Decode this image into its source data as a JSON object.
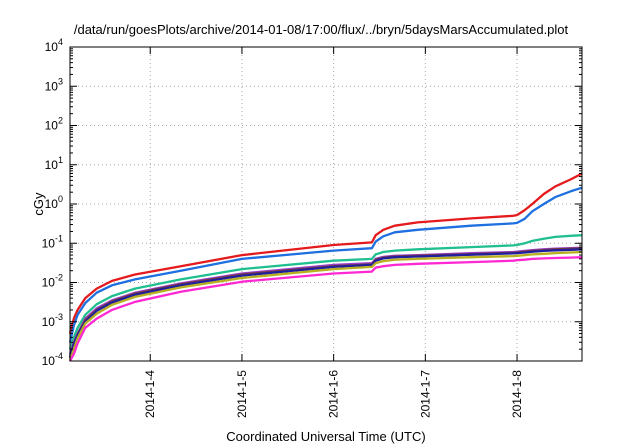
{
  "chart_data": {
    "type": "line",
    "title": "/data/run/goesPlots/archive/2014-01-08/17:00/flux/../bryn/5daysMarsAccumulated.plot",
    "xlabel": "Coordinated Universal Time (UTC)",
    "ylabel": "cGy",
    "y_scale": "log",
    "ylim": [
      0.0001,
      10000
    ],
    "xlim": [
      "2014-01-03 03:00",
      "2014-01-08 17:00"
    ],
    "y_ticks": [
      {
        "base": "10",
        "exp": "-4",
        "value": 0.0001
      },
      {
        "base": "10",
        "exp": "-3",
        "value": 0.001
      },
      {
        "base": "10",
        "exp": "-2",
        "value": 0.01
      },
      {
        "base": "10",
        "exp": "-1",
        "value": 0.1
      },
      {
        "base": "10",
        "exp": "0",
        "value": 1
      },
      {
        "base": "10",
        "exp": "1",
        "value": 10
      },
      {
        "base": "10",
        "exp": "2",
        "value": 100
      },
      {
        "base": "10",
        "exp": "3",
        "value": 1000
      },
      {
        "base": "10",
        "exp": "4",
        "value": 10000
      }
    ],
    "x_ticks": [
      {
        "label": "2014-1-4",
        "value": "2014-01-04 00:00"
      },
      {
        "label": "2014-1-5",
        "value": "2014-01-05 00:00"
      },
      {
        "label": "2014-1-6",
        "value": "2014-01-06 00:00"
      },
      {
        "label": "2014-1-7",
        "value": "2014-01-07 00:00"
      },
      {
        "label": "2014-1-8",
        "value": "2014-01-08 00:00"
      }
    ],
    "grid": true,
    "legend": "none",
    "x": [
      "2014-01-03 03:00",
      "2014-01-03 04:00",
      "2014-01-03 05:00",
      "2014-01-03 07:00",
      "2014-01-03 10:00",
      "2014-01-03 14:00",
      "2014-01-03 20:00",
      "2014-01-04 08:00",
      "2014-01-05 00:00",
      "2014-01-06 00:00",
      "2014-01-06 10:00",
      "2014-01-06 11:00",
      "2014-01-06 13:00",
      "2014-01-06 16:00",
      "2014-01-06 22:00",
      "2014-01-07 12:00",
      "2014-01-07 23:00",
      "2014-01-08 00:00",
      "2014-01-08 02:00",
      "2014-01-08 04:00",
      "2014-01-08 07:00",
      "2014-01-08 10:00",
      "2014-01-08 14:00",
      "2014-01-08 17:00"
    ],
    "series": [
      {
        "color": "#e41a1c",
        "values": [
          0.0005,
          0.0012,
          0.002,
          0.004,
          0.007,
          0.011,
          0.016,
          0.026,
          0.05,
          0.09,
          0.105,
          0.16,
          0.22,
          0.28,
          0.34,
          0.43,
          0.5,
          0.52,
          0.7,
          1.0,
          1.8,
          2.8,
          4.2,
          6.0
        ]
      },
      {
        "color": "#1e6fe0",
        "values": [
          0.0003,
          0.0008,
          0.0015,
          0.003,
          0.0055,
          0.0085,
          0.012,
          0.02,
          0.04,
          0.065,
          0.075,
          0.11,
          0.15,
          0.19,
          0.22,
          0.28,
          0.32,
          0.33,
          0.42,
          0.65,
          1.0,
          1.5,
          2.1,
          2.6
        ]
      },
      {
        "color": "#1fbf8f",
        "values": [
          0.0002,
          0.0004,
          0.0007,
          0.0015,
          0.0028,
          0.0045,
          0.007,
          0.012,
          0.022,
          0.036,
          0.04,
          0.052,
          0.06,
          0.065,
          0.07,
          0.08,
          0.088,
          0.09,
          0.1,
          0.115,
          0.13,
          0.145,
          0.155,
          0.16
        ]
      },
      {
        "color": "#9b3fd0",
        "values": [
          0.00015,
          0.0003,
          0.0005,
          0.0012,
          0.0022,
          0.0035,
          0.0055,
          0.0095,
          0.017,
          0.028,
          0.031,
          0.04,
          0.045,
          0.048,
          0.05,
          0.056,
          0.06,
          0.061,
          0.064,
          0.067,
          0.07,
          0.073,
          0.075,
          0.077
        ]
      },
      {
        "color": "#7a3b3b",
        "values": [
          0.00013,
          0.00028,
          0.00048,
          0.0011,
          0.002,
          0.0033,
          0.0052,
          0.009,
          0.016,
          0.026,
          0.029,
          0.038,
          0.043,
          0.046,
          0.048,
          0.053,
          0.057,
          0.058,
          0.061,
          0.064,
          0.067,
          0.07,
          0.072,
          0.074
        ]
      },
      {
        "color": "#1f1fa0",
        "values": [
          0.00012,
          0.00026,
          0.00045,
          0.001,
          0.0019,
          0.0031,
          0.0049,
          0.0085,
          0.015,
          0.025,
          0.028,
          0.036,
          0.041,
          0.044,
          0.046,
          0.051,
          0.055,
          0.056,
          0.058,
          0.061,
          0.064,
          0.066,
          0.068,
          0.07
        ]
      },
      {
        "color": "#b8b020",
        "values": [
          0.0001,
          0.0002,
          0.00038,
          0.0009,
          0.0016,
          0.0027,
          0.0043,
          0.0075,
          0.013,
          0.022,
          0.025,
          0.031,
          0.035,
          0.038,
          0.04,
          0.044,
          0.047,
          0.048,
          0.05,
          0.052,
          0.054,
          0.056,
          0.058,
          0.06
        ]
      },
      {
        "color": "#ff28d2",
        "values": [
          0.0001,
          0.00015,
          0.00028,
          0.0007,
          0.0012,
          0.002,
          0.0032,
          0.0058,
          0.0105,
          0.017,
          0.019,
          0.024,
          0.026,
          0.028,
          0.03,
          0.033,
          0.036,
          0.037,
          0.038,
          0.04,
          0.041,
          0.042,
          0.043,
          0.044
        ]
      }
    ]
  }
}
